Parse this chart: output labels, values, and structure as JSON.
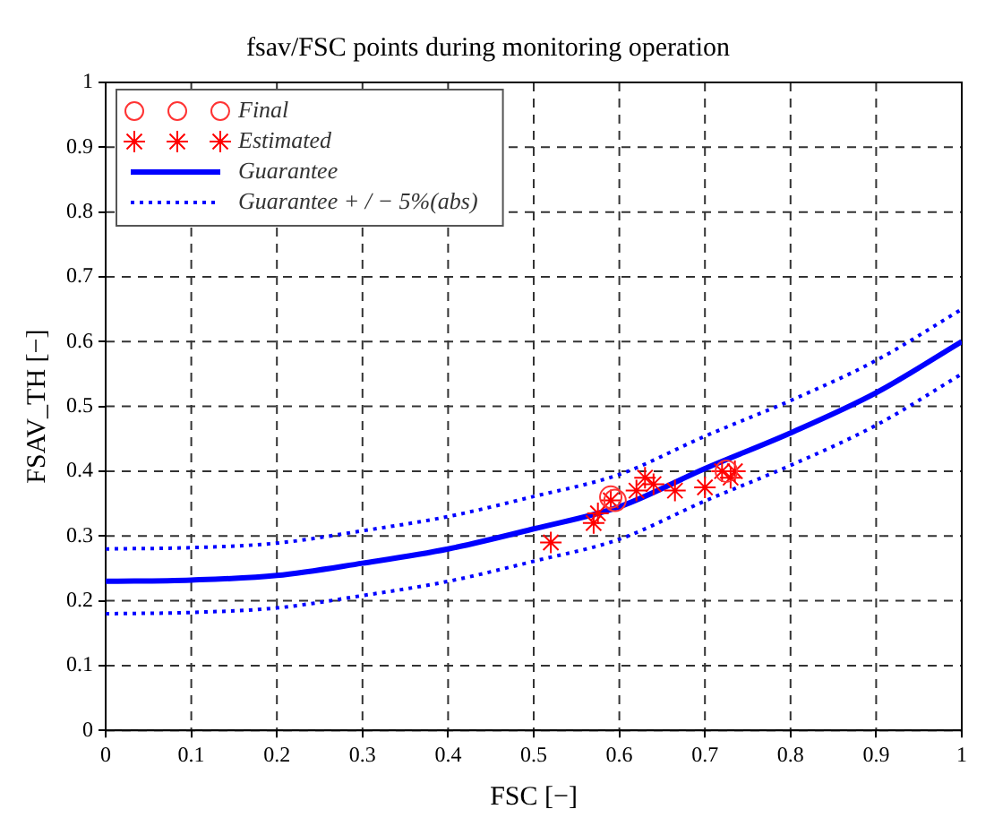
{
  "chart_data": {
    "type": "scatter",
    "title": "fsav/FSC points during monitoring operation",
    "xlabel": "FSC [−]",
    "ylabel": "FSAV_TH [−]",
    "xlim": [
      0,
      1
    ],
    "ylim": [
      0,
      1
    ],
    "xticks": [
      0,
      0.1,
      0.2,
      0.3,
      0.4,
      0.5,
      0.6,
      0.7,
      0.8,
      0.9,
      1
    ],
    "yticks": [
      0,
      0.1,
      0.2,
      0.3,
      0.4,
      0.5,
      0.6,
      0.7,
      0.8,
      0.9,
      1
    ],
    "grid": true,
    "legend": "top left",
    "series": [
      {
        "name": "Final",
        "type": "scatter",
        "marker": "circle",
        "color": "#ff3333",
        "x": [
          0.59,
          0.595,
          0.725
        ],
        "values": [
          0.36,
          0.355,
          0.4
        ]
      },
      {
        "name": "Estimated",
        "type": "scatter",
        "marker": "cross",
        "color": "#ff0000",
        "x": [
          0.52,
          0.57,
          0.575,
          0.59,
          0.62,
          0.63,
          0.64,
          0.665,
          0.7,
          0.72,
          0.73,
          0.735
        ],
        "values": [
          0.29,
          0.32,
          0.335,
          0.355,
          0.37,
          0.39,
          0.38,
          0.37,
          0.375,
          0.4,
          0.39,
          0.4
        ]
      },
      {
        "name": "Guarantee",
        "type": "line",
        "marker": "none",
        "line_style": "solid",
        "color": "#0000ff",
        "x": [
          0,
          0.1,
          0.2,
          0.3,
          0.4,
          0.5,
          0.6,
          0.7,
          0.8,
          0.9,
          1
        ],
        "values": [
          0.23,
          0.232,
          0.239,
          0.258,
          0.28,
          0.311,
          0.345,
          0.404,
          0.459,
          0.521,
          0.6
        ]
      },
      {
        "name": "Guarantee + / − 5%(abs)",
        "type": "line",
        "marker": "none",
        "line_style": "dotted",
        "color": "#0000ff",
        "x": [
          0,
          0.1,
          0.2,
          0.3,
          0.4,
          0.5,
          0.6,
          0.7,
          0.8,
          0.9,
          1
        ],
        "values": [
          0.28,
          0.282,
          0.289,
          0.308,
          0.33,
          0.361,
          0.395,
          0.454,
          0.509,
          0.571,
          0.65
        ]
      },
      {
        "type": "line",
        "marker": "none",
        "line_style": "dotted",
        "color": "#0000ff",
        "x": [
          0,
          0.1,
          0.2,
          0.3,
          0.4,
          0.5,
          0.6,
          0.7,
          0.8,
          0.9,
          1
        ],
        "values": [
          0.18,
          0.182,
          0.189,
          0.208,
          0.23,
          0.261,
          0.295,
          0.354,
          0.409,
          0.471,
          0.55
        ]
      }
    ]
  }
}
